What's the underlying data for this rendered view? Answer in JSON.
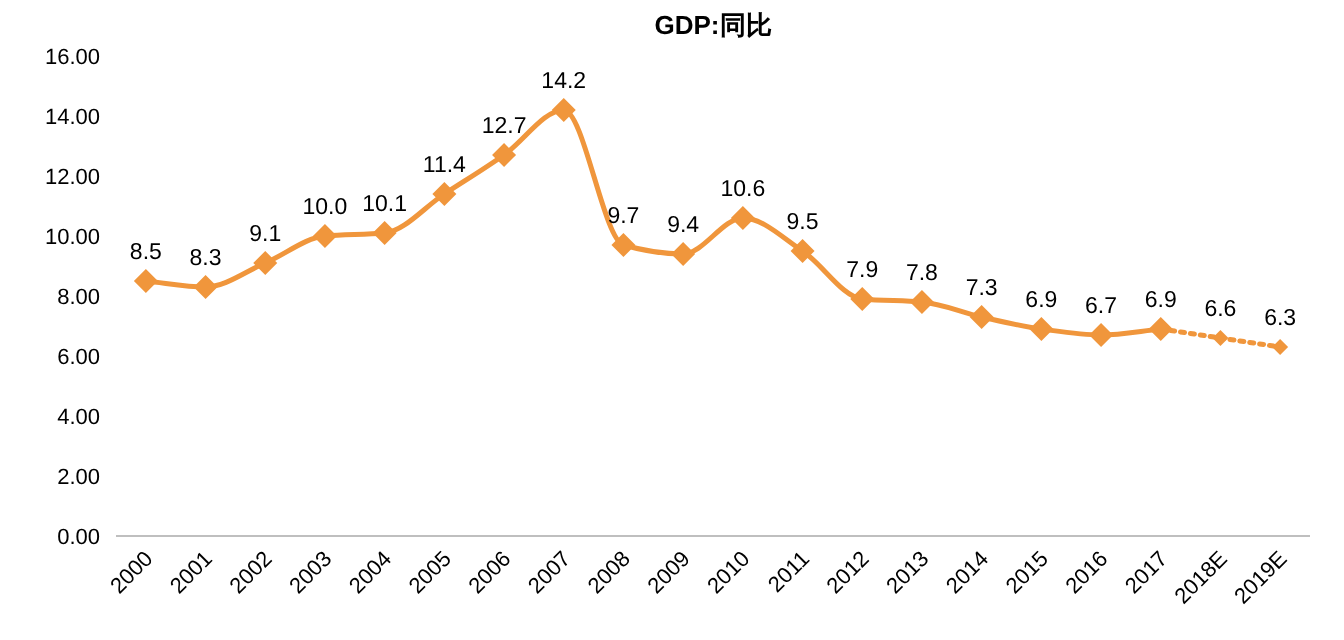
{
  "chart_data": {
    "type": "line",
    "title": "GDP:同比",
    "categories": [
      "2000",
      "2001",
      "2002",
      "2003",
      "2004",
      "2005",
      "2006",
      "2007",
      "2008",
      "2009",
      "2010",
      "2011",
      "2012",
      "2013",
      "2014",
      "2015",
      "2016",
      "2017",
      "2018E",
      "2019E"
    ],
    "ylim": [
      0,
      16
    ],
    "yticks": [
      {
        "value": 0,
        "label": "0.00"
      },
      {
        "value": 2,
        "label": "2.00"
      },
      {
        "value": 4,
        "label": "4.00"
      },
      {
        "value": 6,
        "label": "6.00"
      },
      {
        "value": 8,
        "label": "8.00"
      },
      {
        "value": 10,
        "label": "10.00"
      },
      {
        "value": 12,
        "label": "12.00"
      },
      {
        "value": 14,
        "label": "14.00"
      },
      {
        "value": 16,
        "label": "16.00"
      }
    ],
    "marker": "diamond",
    "series": [
      {
        "color": "#f0963c",
        "line_style": "solid",
        "values": [
          8.5,
          8.3,
          9.1,
          10.0,
          10.1,
          11.4,
          12.7,
          14.2,
          9.7,
          9.4,
          10.6,
          9.5,
          7.9,
          7.8,
          7.3,
          6.9,
          6.7,
          6.9,
          null,
          null
        ],
        "value_labels": [
          "8.5",
          "8.3",
          "9.1",
          "10.0",
          "10.1",
          "11.4",
          "12.7",
          "14.2",
          "9.7",
          "9.4",
          "10.6",
          "9.5",
          "7.9",
          "7.8",
          "7.3",
          "6.9",
          "6.7",
          "6.9",
          null,
          null
        ]
      },
      {
        "color": "#f0963c",
        "line_style": "dotted",
        "values": [
          null,
          null,
          null,
          null,
          null,
          null,
          null,
          null,
          null,
          null,
          null,
          null,
          null,
          null,
          null,
          null,
          null,
          6.9,
          6.6,
          6.3
        ],
        "value_labels": [
          null,
          null,
          null,
          null,
          null,
          null,
          null,
          null,
          null,
          null,
          null,
          null,
          null,
          null,
          null,
          null,
          null,
          null,
          "6.6",
          "6.3"
        ]
      }
    ]
  }
}
